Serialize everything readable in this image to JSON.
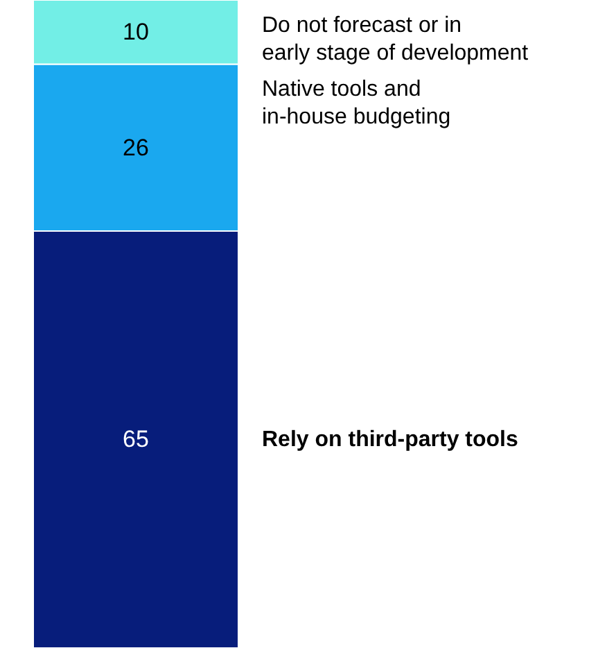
{
  "chart_data": {
    "type": "bar",
    "stacked": true,
    "categories": [
      null
    ],
    "data_labels": true,
    "series": [
      {
        "name": "Rely on third-party tools",
        "color": "#071d7b",
        "values": [
          65
        ]
      },
      {
        "name": "Native tools and\nin-house budgeting",
        "color": "#1aa8ef",
        "values": [
          26
        ]
      },
      {
        "name": "Do not forecast or in\nearly stage of development",
        "color": "#72eee6",
        "values": [
          10
        ]
      }
    ]
  }
}
